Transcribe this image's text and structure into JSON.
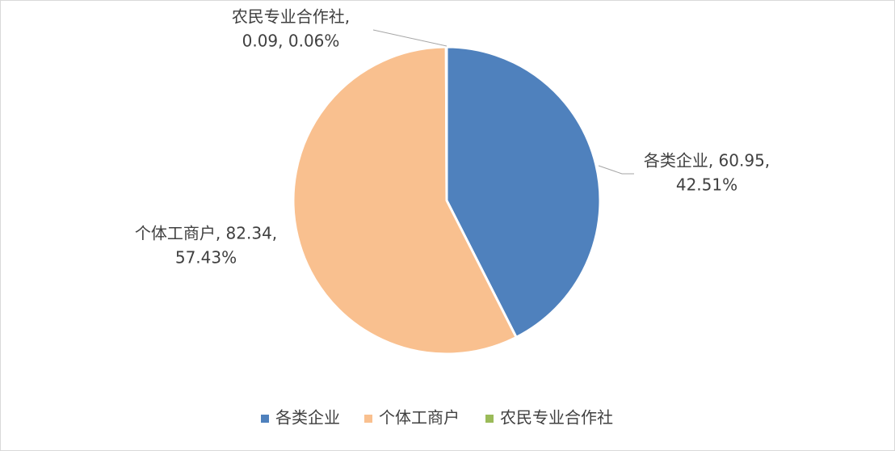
{
  "chart_data": {
    "type": "pie",
    "categories": [
      "各类企业",
      "个体工商户",
      "农民专业合作社"
    ],
    "values": [
      60.95,
      82.34,
      0.09
    ],
    "value_labels": [
      [
        "各类企业, 60.95,",
        "42.51%"
      ],
      [
        "个体工商户, 82.34,",
        "57.43%"
      ],
      [
        "农民专业合作社,",
        "0.09, 0.06%"
      ]
    ],
    "colors": [
      "#4f81bd",
      "#f9c08f",
      "#9bbb59"
    ],
    "legend": "bottom"
  }
}
